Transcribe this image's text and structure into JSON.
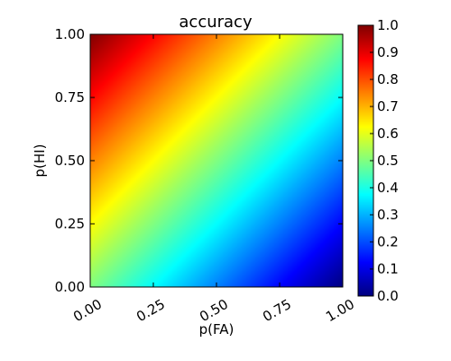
{
  "chart_data": {
    "type": "heatmap",
    "title": "accuracy",
    "xlabel": "p(FA)",
    "ylabel": "p(HI)",
    "xlim": [
      0,
      1
    ],
    "ylim": [
      0,
      1
    ],
    "x_ticks": [
      0,
      0.25,
      0.5,
      0.75,
      1.0
    ],
    "x_tick_labels": [
      "0.00",
      "0.25",
      "0.50",
      "0.75",
      "1.00"
    ],
    "y_ticks": [
      0,
      0.25,
      0.5,
      0.75,
      1.0
    ],
    "y_tick_labels": [
      "0.00",
      "0.25",
      "0.50",
      "0.75",
      "1.00"
    ],
    "colormap": "jet",
    "grid": false,
    "colorbar": {
      "range": [
        0,
        1
      ],
      "ticks": [
        0,
        0.1,
        0.2,
        0.3,
        0.4,
        0.5,
        0.6,
        0.7,
        0.8,
        0.9,
        1.0
      ],
      "tick_labels": [
        "0.0",
        "0.1",
        "0.2",
        "0.3",
        "0.4",
        "0.5",
        "0.6",
        "0.7",
        "0.8",
        "0.9",
        "1.0"
      ],
      "placement": "right"
    },
    "z_formula": "accuracy = (p(HI) + 1 - p(FA)) / 2",
    "z_corners": {
      "x0_y0": 0.5,
      "x1_y0": 0.0,
      "x0_y1": 1.0,
      "x1_y1": 0.5
    }
  }
}
